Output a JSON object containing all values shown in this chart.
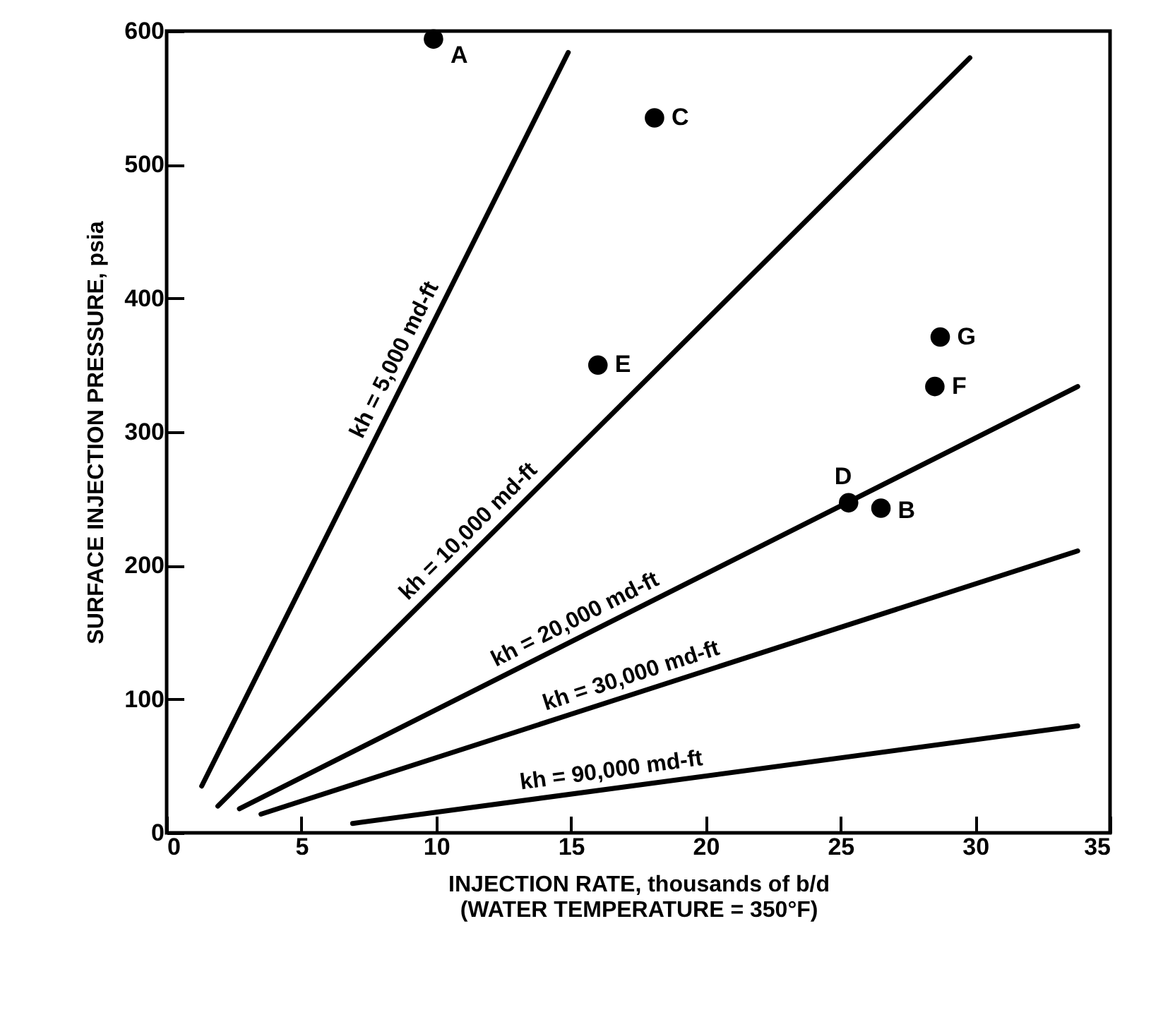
{
  "chart_data": {
    "type": "line",
    "xlabel": "INJECTION RATE, thousands of b/d\n(WATER TEMPERATURE = 350°F)",
    "ylabel": "SURFACE INJECTION PRESSURE, psia",
    "xlim": [
      0,
      35
    ],
    "ylim": [
      0,
      600
    ],
    "xticks": [
      0,
      5,
      10,
      15,
      20,
      25,
      30,
      35
    ],
    "yticks": [
      0,
      100,
      200,
      300,
      400,
      500,
      600
    ],
    "grid": false,
    "line_style": "solid",
    "series": [
      {
        "name": "kh = 5,000 md-ft",
        "color": "#000000",
        "x": [
          1.3,
          14.9
        ],
        "values": [
          35,
          584
        ]
      },
      {
        "name": "kh = 10,000 md-ft",
        "color": "#000000",
        "x": [
          1.9,
          29.8
        ],
        "values": [
          20,
          580
        ]
      },
      {
        "name": "kh = 20,000 md-ft",
        "color": "#000000",
        "x": [
          2.7,
          33.8
        ],
        "values": [
          18,
          334
        ]
      },
      {
        "name": "kh = 30,000 md-ft",
        "color": "#000000",
        "x": [
          3.5,
          33.8
        ],
        "values": [
          14,
          211
        ]
      },
      {
        "name": "kh = 90,000 md-ft",
        "color": "#000000",
        "x": [
          6.9,
          33.8
        ],
        "values": [
          7,
          80
        ]
      },
      {
        "name": "A",
        "type": "scatter",
        "marker": "circle",
        "color": "#000000",
        "x": [
          9.9
        ],
        "values": [
          594
        ]
      },
      {
        "name": "B",
        "type": "scatter",
        "marker": "circle",
        "color": "#000000",
        "x": [
          26.5
        ],
        "values": [
          243
        ]
      },
      {
        "name": "C",
        "type": "scatter",
        "marker": "circle",
        "color": "#000000",
        "x": [
          18.1
        ],
        "values": [
          535
        ]
      },
      {
        "name": "D",
        "type": "scatter",
        "marker": "circle",
        "color": "#000000",
        "x": [
          25.3
        ],
        "values": [
          247
        ]
      },
      {
        "name": "E",
        "type": "scatter",
        "marker": "circle",
        "color": "#000000",
        "x": [
          16.0
        ],
        "values": [
          350
        ]
      },
      {
        "name": "F",
        "type": "scatter",
        "marker": "circle",
        "color": "#000000",
        "x": [
          28.5
        ],
        "values": [
          334
        ]
      },
      {
        "name": "G",
        "type": "scatter",
        "marker": "circle",
        "color": "#000000",
        "x": [
          28.7
        ],
        "values": [
          371
        ]
      }
    ]
  }
}
